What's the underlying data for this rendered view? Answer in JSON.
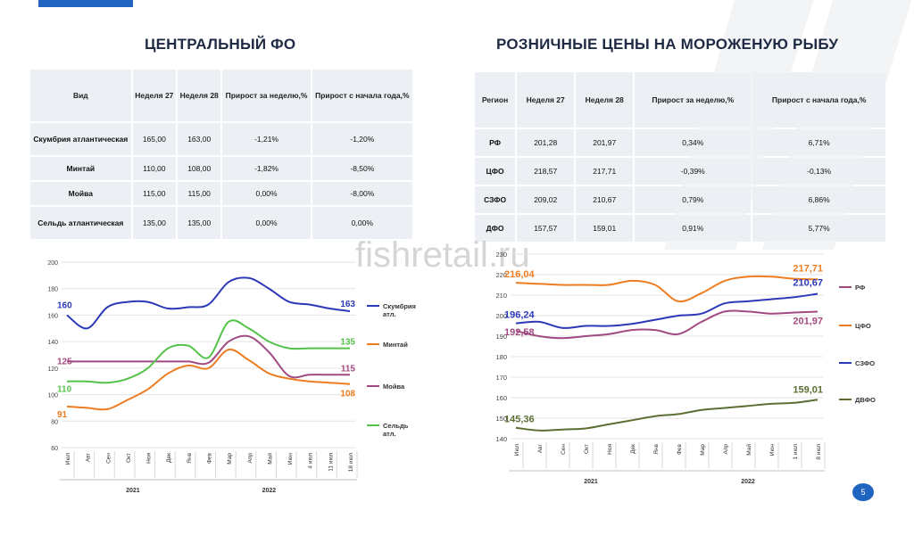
{
  "left_title": "ЦЕНТРАЛЬНЫЙ ФО",
  "right_title": "РОЗНИЧНЫЕ ЦЕНЫ НА МОРОЖЕНУЮ РЫБУ",
  "watermark": "fishretail.ru",
  "page_number": "5",
  "left_table": {
    "headers": [
      "Вид",
      "Неделя 27",
      "Неделя 28",
      "Прирост за неделю,%",
      "Прирост с начала года,%"
    ],
    "rows": [
      [
        "Скумбрия атлантическая",
        "165,00",
        "163,00",
        "-1,21%",
        "-1,20%"
      ],
      [
        "Минтай",
        "110,00",
        "108,00",
        "-1,82%",
        "-8,50%"
      ],
      [
        "Мойва",
        "115,00",
        "115,00",
        "0,00%",
        "-8,00%"
      ],
      [
        "Сельдь атлантическая",
        "135,00",
        "135,00",
        "0,00%",
        "0,00%"
      ]
    ]
  },
  "right_table": {
    "headers": [
      "Регион",
      "Неделя 27",
      "Неделя 28",
      "Прирост за неделю,%",
      "Прирост с начала года,%"
    ],
    "rows": [
      [
        "РФ",
        "201,28",
        "201,97",
        "0,34%",
        "6,71%"
      ],
      [
        "ЦФО",
        "218,57",
        "217,71",
        "-0,39%",
        "-0,13%"
      ],
      [
        "СЗФО",
        "209,02",
        "210,67",
        "0,79%",
        "6,86%"
      ],
      [
        "ДФО",
        "157,57",
        "159,01",
        "0,91%",
        "5,77%"
      ]
    ]
  },
  "chart_data": [
    {
      "type": "line",
      "categories": [
        "Июл",
        "Авг",
        "Сен",
        "Окт",
        "Ноя",
        "Дек",
        "Янв",
        "Фев",
        "Мар",
        "Апр",
        "Май",
        "Июн",
        "4 июл",
        "11 июл",
        "18 июл"
      ],
      "groups": [
        "2021",
        "2022"
      ],
      "ylim": [
        60,
        200
      ],
      "yticks": [
        60,
        80,
        100,
        120,
        140,
        160,
        180,
        200
      ],
      "series": [
        {
          "name": "Скумбрия атл.",
          "color": "#2b39b8",
          "values": [
            160,
            150,
            166,
            170,
            170,
            165,
            166,
            168,
            185,
            188,
            180,
            170,
            168,
            165,
            163
          ],
          "start_label": "160",
          "end_label": "163"
        },
        {
          "name": "Минтай",
          "color": "#ee7d22",
          "values": [
            91,
            90,
            89,
            96,
            104,
            116,
            122,
            120,
            134,
            126,
            116,
            112,
            110,
            109,
            108
          ],
          "start_label": "91",
          "end_label": "108"
        },
        {
          "name": "Мойва",
          "color": "#a04a80",
          "values": [
            125,
            125,
            125,
            125,
            125,
            125,
            125,
            124,
            140,
            144,
            132,
            114,
            115,
            115,
            115
          ],
          "start_label": "125",
          "end_label": "115"
        },
        {
          "name": "Сельдь атл.",
          "color": "#55c24a",
          "values": [
            110,
            110,
            109,
            112,
            120,
            135,
            137,
            128,
            155,
            150,
            140,
            135,
            135,
            135,
            135
          ],
          "start_label": "110",
          "end_label": "135"
        }
      ]
    },
    {
      "type": "line",
      "categories": [
        "Июл",
        "Авг",
        "Сен",
        "Окт",
        "Ноя",
        "Дек",
        "Янв",
        "Фев",
        "Мар",
        "Апр",
        "Май",
        "Июн",
        "1 июл",
        "8 июл"
      ],
      "groups": [
        "2021",
        "2022"
      ],
      "ylim": [
        140,
        230
      ],
      "yticks": [
        140,
        150,
        160,
        170,
        180,
        190,
        200,
        210,
        220,
        230
      ],
      "series": [
        {
          "name": "РФ",
          "color": "#a04a80",
          "values": [
            192.58,
            190,
            189,
            190,
            191,
            193,
            193,
            191,
            197,
            202,
            202,
            201,
            201.5,
            201.97
          ],
          "start_label": "192,58",
          "end_label": "201,97"
        },
        {
          "name": "ЦФО",
          "color": "#ee7d22",
          "values": [
            216.04,
            215.5,
            215,
            215,
            215,
            217,
            215,
            207,
            211,
            217,
            219,
            219,
            218,
            217.71
          ],
          "start_label": "216,04",
          "end_label": "217,71"
        },
        {
          "name": "СЗФО",
          "color": "#2b39b8",
          "values": [
            196.24,
            197,
            194,
            195,
            195,
            196,
            198,
            200,
            201,
            206,
            207,
            208,
            209,
            210.67
          ],
          "start_label": "196,24",
          "end_label": "210,67"
        },
        {
          "name": "ДВФО",
          "color": "#5c6e32",
          "values": [
            145.36,
            144,
            144.5,
            145,
            147,
            149,
            151,
            152,
            154,
            155,
            156,
            157,
            157.5,
            159.01
          ],
          "start_label": "145,36",
          "end_label": "159,01"
        }
      ]
    }
  ]
}
